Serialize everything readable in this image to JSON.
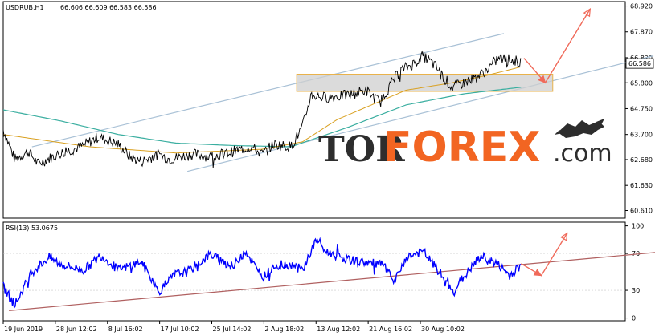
{
  "header": {
    "symbol": "USDRUB,H1",
    "ohlc": "66.606 66.609 66.583 66.586",
    "rsi_label": "RSI(13) 53.0675"
  },
  "watermark": {
    "part1": "TOR",
    "part2": "FOREX",
    "part3": ".com"
  },
  "colors": {
    "price": "#000000",
    "ma_fast": "#d9a020",
    "ma_slow": "#3aaea0",
    "channel": "#a9c1d6",
    "arrow": "#f06a5a",
    "zone_fill": "#cfcfcf",
    "zone_border": "#e9b24a",
    "rsi": "#0000ff",
    "rsi_trend": "#b06060",
    "logo_dark": "#2d2d2d",
    "logo_accent": "#f26522"
  },
  "chart_data": [
    {
      "type": "line",
      "name": "price_panel",
      "y_ticks": [
        60.61,
        61.63,
        62.68,
        63.7,
        64.75,
        65.8,
        66.82,
        67.87,
        68.92
      ],
      "y_tick_labels": [
        "60.610",
        "61.630",
        "62.680",
        "63.700",
        "64.750",
        "65.800",
        "66.820",
        "67.870",
        "68.920"
      ],
      "ylim": [
        60.3,
        69.1
      ],
      "current_price_label": "66.586",
      "x_ticks": [
        "19 Jun 2019",
        "28 Jun 12:02",
        "8 Jul 16:02",
        "17 Jul 10:02",
        "25 Jul 14:02",
        "2 Aug 18:02",
        "13 Aug 12:02",
        "21 Aug 16:02",
        "30 Aug 10:02"
      ],
      "price_anchors": [
        [
          0,
          63.9
        ],
        [
          0.02,
          62.7
        ],
        [
          0.045,
          63.0
        ],
        [
          0.06,
          62.5
        ],
        [
          0.1,
          62.95
        ],
        [
          0.135,
          63.2
        ],
        [
          0.165,
          63.6
        ],
        [
          0.2,
          63.3
        ],
        [
          0.22,
          62.8
        ],
        [
          0.24,
          62.6
        ],
        [
          0.27,
          62.9
        ],
        [
          0.29,
          62.7
        ],
        [
          0.33,
          62.9
        ],
        [
          0.36,
          62.8
        ],
        [
          0.39,
          62.95
        ],
        [
          0.43,
          63.2
        ],
        [
          0.45,
          62.9
        ],
        [
          0.47,
          63.3
        ],
        [
          0.5,
          63.2
        ],
        [
          0.52,
          64.0
        ],
        [
          0.535,
          65.3
        ],
        [
          0.56,
          65.2
        ],
        [
          0.6,
          65.3
        ],
        [
          0.63,
          65.5
        ],
        [
          0.655,
          65.0
        ],
        [
          0.67,
          65.6
        ],
        [
          0.69,
          66.3
        ],
        [
          0.715,
          66.6
        ],
        [
          0.73,
          66.9
        ],
        [
          0.75,
          66.5
        ],
        [
          0.78,
          65.6
        ],
        [
          0.8,
          65.8
        ],
        [
          0.82,
          66.0
        ],
        [
          0.84,
          66.3
        ],
        [
          0.86,
          66.8
        ],
        [
          0.89,
          66.7
        ],
        [
          0.9,
          66.6
        ]
      ],
      "ma_fast_anchors": [
        [
          0,
          63.7
        ],
        [
          0.15,
          63.2
        ],
        [
          0.3,
          62.95
        ],
        [
          0.45,
          63.1
        ],
        [
          0.52,
          63.4
        ],
        [
          0.58,
          64.3
        ],
        [
          0.65,
          65.0
        ],
        [
          0.7,
          65.5
        ],
        [
          0.78,
          65.8
        ],
        [
          0.84,
          66.1
        ],
        [
          0.9,
          66.45
        ]
      ],
      "ma_slow_anchors": [
        [
          0,
          64.7
        ],
        [
          0.1,
          64.25
        ],
        [
          0.2,
          63.7
        ],
        [
          0.3,
          63.35
        ],
        [
          0.4,
          63.25
        ],
        [
          0.5,
          63.2
        ],
        [
          0.6,
          64.0
        ],
        [
          0.7,
          64.9
        ],
        [
          0.8,
          65.35
        ],
        [
          0.9,
          65.62
        ]
      ],
      "channel_lines": [
        [
          [
            0.05,
            63.2
          ],
          [
            0.87,
            67.8
          ]
        ],
        [
          [
            0.32,
            62.2
          ],
          [
            1.13,
            66.9
          ]
        ]
      ],
      "zone": {
        "x0": 0.51,
        "x1": 0.955,
        "y0": 65.45,
        "y1": 66.15
      },
      "arrows": [
        [
          [
            0.905,
            66.8
          ],
          [
            0.942,
            65.8
          ],
          [
            1.02,
            68.8
          ]
        ]
      ]
    },
    {
      "type": "line",
      "name": "RSI(13)",
      "y_ticks": [
        0,
        30,
        70,
        100
      ],
      "y_tick_labels": [
        "0",
        "30",
        "70",
        "100"
      ],
      "ylim": [
        -3,
        104
      ],
      "current_value": 53.0675,
      "rsi_anchors": [
        [
          0,
          34
        ],
        [
          0.02,
          14
        ],
        [
          0.05,
          50
        ],
        [
          0.08,
          66
        ],
        [
          0.1,
          58
        ],
        [
          0.14,
          52
        ],
        [
          0.17,
          68
        ],
        [
          0.2,
          52
        ],
        [
          0.24,
          61
        ],
        [
          0.27,
          28
        ],
        [
          0.3,
          48
        ],
        [
          0.32,
          50
        ],
        [
          0.36,
          69
        ],
        [
          0.4,
          55
        ],
        [
          0.42,
          74
        ],
        [
          0.45,
          43
        ],
        [
          0.47,
          56
        ],
        [
          0.5,
          58
        ],
        [
          0.52,
          52
        ],
        [
          0.545,
          86
        ],
        [
          0.56,
          72
        ],
        [
          0.6,
          63
        ],
        [
          0.63,
          60
        ],
        [
          0.66,
          58
        ],
        [
          0.68,
          38
        ],
        [
          0.7,
          66
        ],
        [
          0.73,
          72
        ],
        [
          0.76,
          48
        ],
        [
          0.78,
          28
        ],
        [
          0.8,
          44
        ],
        [
          0.83,
          67
        ],
        [
          0.86,
          58
        ],
        [
          0.88,
          46
        ],
        [
          0.9,
          57
        ]
      ],
      "trend_line": [
        [
          0.01,
          8
        ],
        [
          1.15,
          72
        ]
      ],
      "arrows": [
        [
          [
            0.9,
            59
          ],
          [
            0.935,
            46
          ],
          [
            0.98,
            92
          ]
        ]
      ]
    }
  ]
}
